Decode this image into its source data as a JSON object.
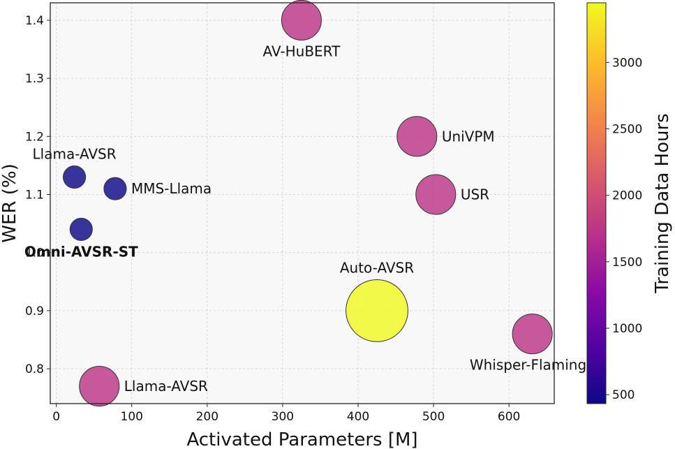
{
  "chart_data": {
    "type": "scatter",
    "title": "",
    "xlabel": "Activated Parameters [M]",
    "ylabel": "WER (%)",
    "xlim": [
      -8,
      660
    ],
    "ylim": [
      0.74,
      1.43
    ],
    "xticks": [
      0,
      100,
      200,
      300,
      400,
      500,
      600
    ],
    "yticks": [
      0.8,
      0.9,
      1.0,
      1.1,
      1.2,
      1.3,
      1.4
    ],
    "grid": true,
    "colorbar": {
      "label": "Training Data Hours",
      "range": [
        433,
        3448
      ],
      "ticks": [
        500,
        1000,
        1500,
        2000,
        2500,
        3000
      ],
      "colormap": "plasma"
    },
    "points": [
      {
        "label": "AV-HuBERT",
        "x": 325,
        "y": 1.4,
        "hours": 1759,
        "label_pos": "below",
        "bold": false
      },
      {
        "label": "UniVPM",
        "x": 478,
        "y": 1.2,
        "hours": 1759,
        "label_pos": "right",
        "bold": false
      },
      {
        "label": "USR",
        "x": 503,
        "y": 1.1,
        "hours": 1759,
        "label_pos": "right",
        "bold": false
      },
      {
        "label": "Llama-AVSR",
        "x": 24,
        "y": 1.13,
        "hours": 433,
        "label_pos": "above",
        "bold": false
      },
      {
        "label": "MMS-Llama",
        "x": 78,
        "y": 1.11,
        "hours": 433,
        "label_pos": "right",
        "bold": false
      },
      {
        "label": "Omni-AVSR-ST",
        "x": 33,
        "y": 1.04,
        "hours": 433,
        "label_pos": "below",
        "bold": true
      },
      {
        "label": "Auto-AVSR",
        "x": 425,
        "y": 0.9,
        "hours": 3448,
        "label_pos": "above",
        "bold": false
      },
      {
        "label": "Whisper-Flamingo",
        "x": 631,
        "y": 0.86,
        "hours": 1759,
        "label_pos": "below",
        "bold": false
      },
      {
        "label": "Llama-AVSR",
        "x": 57,
        "y": 0.77,
        "hours": 1759,
        "label_pos": "right",
        "bold": false
      }
    ]
  }
}
